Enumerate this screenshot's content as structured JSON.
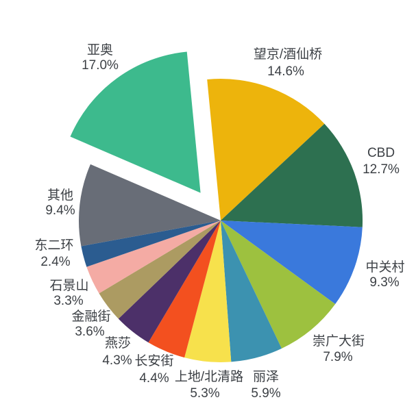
{
  "chart_data": {
    "type": "pie",
    "title": "",
    "unit": "%",
    "order": "clockwise",
    "start_angle_offset_deg": -5.5,
    "legend": "none",
    "background": "#ffffff",
    "label_color": "#3c4045",
    "slices": [
      {
        "label": "望京/酒仙桥",
        "pct": "14.6%",
        "value": 14.6,
        "color": "#edb40c",
        "exploded": false
      },
      {
        "label": "CBD",
        "pct": "12.7%",
        "value": 12.7,
        "color": "#2d7050",
        "exploded": false
      },
      {
        "label": "中关村",
        "pct": "9.3%",
        "value": 9.3,
        "color": "#3a79dc",
        "exploded": false
      },
      {
        "label": "崇广大街",
        "pct": "7.9%",
        "value": 7.9,
        "color": "#9dc13f",
        "exploded": false
      },
      {
        "label": "丽泽",
        "pct": "5.9%",
        "value": 5.9,
        "color": "#3c92b0",
        "exploded": false
      },
      {
        "label": "上地/北清路",
        "pct": "5.3%",
        "value": 5.3,
        "color": "#f7e14c",
        "exploded": false
      },
      {
        "label": "长安街",
        "pct": "4.4%",
        "value": 4.4,
        "color": "#f3501f",
        "exploded": false
      },
      {
        "label": "燕莎",
        "pct": "4.3%",
        "value": 4.3,
        "color": "#4c3069",
        "exploded": false
      },
      {
        "label": "金融街",
        "pct": "3.6%",
        "value": 3.6,
        "color": "#ac9b62",
        "exploded": false
      },
      {
        "label": "石景山",
        "pct": "3.3%",
        "value": 3.3,
        "color": "#f4aba4",
        "exploded": false
      },
      {
        "label": "东二环",
        "pct": "2.4%",
        "value": 2.4,
        "color": "#2b5c90",
        "exploded": false
      },
      {
        "label": "其他",
        "pct": "9.4%",
        "value": 9.4,
        "color": "#686d77",
        "exploded": false
      },
      {
        "label": "亚奥",
        "pct": "17.0%",
        "value": 17.0,
        "color": "#3dba8d",
        "exploded": true
      }
    ]
  }
}
